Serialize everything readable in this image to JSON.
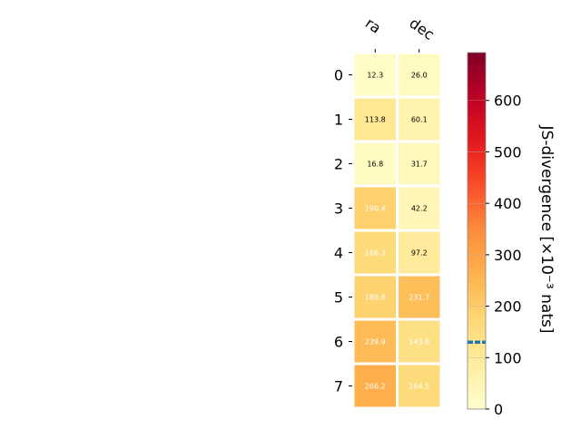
{
  "chart_data": {
    "type": "heatmap",
    "columns": [
      "ra",
      "dec"
    ],
    "rows": [
      "0",
      "1",
      "2",
      "3",
      "4",
      "5",
      "6",
      "7"
    ],
    "values": [
      [
        12.3,
        26.0
      ],
      [
        113.8,
        60.1
      ],
      [
        16.8,
        31.7
      ],
      [
        190.4,
        42.2
      ],
      [
        166.3,
        97.2
      ],
      [
        189.8,
        231.7
      ],
      [
        239.9,
        143.8
      ],
      [
        266.2,
        164.5
      ]
    ],
    "value_labels": [
      [
        "12.3",
        "26.0"
      ],
      [
        "113.8",
        "60.1"
      ],
      [
        "16.8",
        "31.7"
      ],
      [
        "190.4",
        "42.2"
      ],
      [
        "166.3",
        "97.2"
      ],
      [
        "189.8",
        "231.7"
      ],
      [
        "239.9",
        "143.8"
      ],
      [
        "266.2",
        "164.5"
      ]
    ],
    "colorbar": {
      "label": "JS-divergence [×10⁻³ nats]",
      "range": [
        0,
        693
      ],
      "ticks": [
        0,
        100,
        200,
        300,
        400,
        500,
        600
      ],
      "colormap": "YlOrRd",
      "marker_value": 130,
      "marker_color": "#1f77b4"
    },
    "text_threshold": 140
  }
}
